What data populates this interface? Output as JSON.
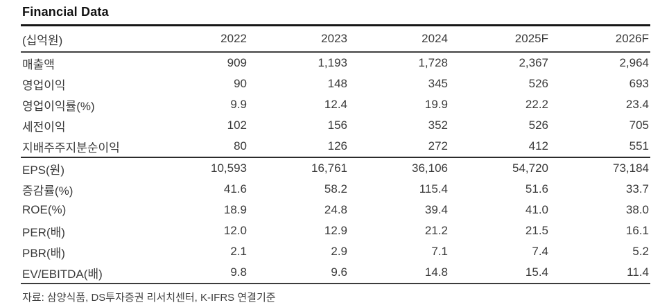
{
  "title": "Financial Data",
  "table": {
    "unit_header": "(십억원)",
    "columns": [
      "2022",
      "2023",
      "2024",
      "2025F",
      "2026F"
    ],
    "rows": [
      {
        "label": "매출액",
        "values": [
          "909",
          "1,193",
          "1,728",
          "2,367",
          "2,964"
        ]
      },
      {
        "label": "영업이익",
        "values": [
          "90",
          "148",
          "345",
          "526",
          "693"
        ]
      },
      {
        "label": "영업이익률(%)",
        "values": [
          "9.9",
          "12.4",
          "19.9",
          "22.2",
          "23.4"
        ]
      },
      {
        "label": "세전이익",
        "values": [
          "102",
          "156",
          "352",
          "526",
          "705"
        ]
      },
      {
        "label": "지배주주지분순이익",
        "values": [
          "80",
          "126",
          "272",
          "412",
          "551"
        ]
      },
      {
        "label": "EPS(원)",
        "values": [
          "10,593",
          "16,761",
          "36,106",
          "54,720",
          "73,184"
        ]
      },
      {
        "label": "증감률(%)",
        "values": [
          "41.6",
          "58.2",
          "115.4",
          "51.6",
          "33.7"
        ]
      },
      {
        "label": "ROE(%)",
        "values": [
          "18.9",
          "24.8",
          "39.4",
          "41.0",
          "38.0"
        ]
      },
      {
        "label": "PER(배)",
        "values": [
          "12.0",
          "12.9",
          "21.2",
          "21.5",
          "16.1"
        ]
      },
      {
        "label": "PBR(배)",
        "values": [
          "2.1",
          "2.9",
          "7.1",
          "7.4",
          "5.2"
        ]
      },
      {
        "label": "EV/EBITDA(배)",
        "values": [
          "9.8",
          "9.6",
          "14.8",
          "15.4",
          "11.4"
        ]
      }
    ],
    "source_note": "자료: 삼양식품, DS투자증권 리서치센터, K-IFRS 연결기준"
  },
  "colors": {
    "background": "#ffffff",
    "text": "#3a3a3a",
    "title": "#111111",
    "rule_heavy": "#161616",
    "rule_medium": "#3c3c3c"
  }
}
